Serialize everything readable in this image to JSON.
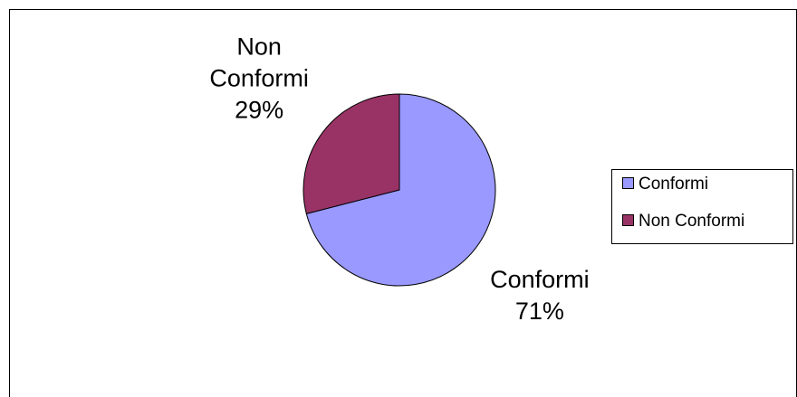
{
  "chart_data": {
    "type": "pie",
    "title": "",
    "categories": [
      "Conformi",
      "Non Conformi"
    ],
    "values": [
      71,
      29
    ],
    "colors": [
      "#9999ff",
      "#993366"
    ],
    "data_labels": [
      {
        "name_lines": [
          "Conformi"
        ],
        "value": "71%"
      },
      {
        "name_lines": [
          "Non",
          "Conformi"
        ],
        "value": "29%"
      }
    ],
    "legend": {
      "position": "right",
      "entries": [
        "Conformi",
        "Non Conformi"
      ]
    }
  }
}
